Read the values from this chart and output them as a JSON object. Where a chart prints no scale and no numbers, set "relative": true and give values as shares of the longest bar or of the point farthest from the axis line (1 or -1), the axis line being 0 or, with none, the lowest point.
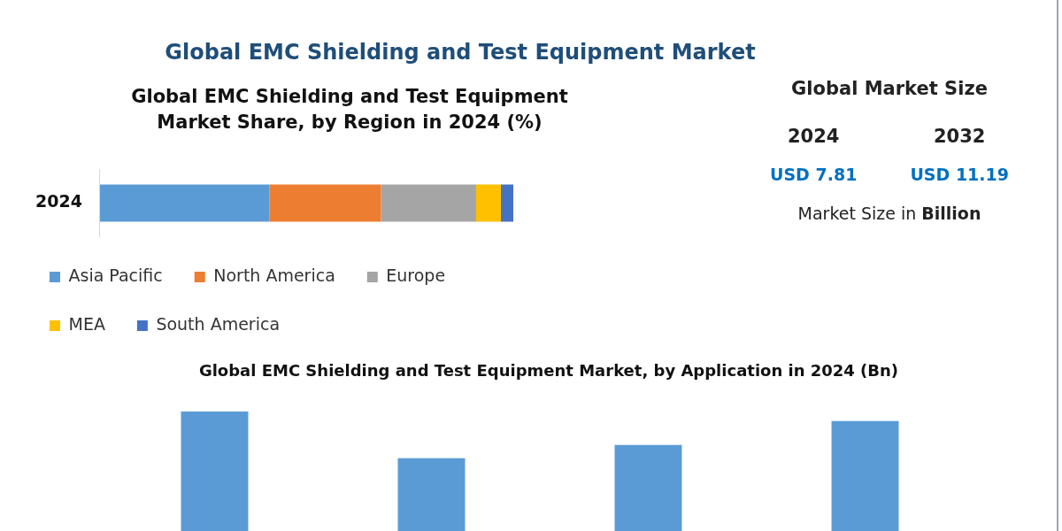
{
  "chart_data": [
    {
      "type": "bar",
      "orientation": "horizontal",
      "stacked": true,
      "relative": true,
      "title": "Global EMC Shielding and Test Equipment Market",
      "subtitle": "Global EMC Shielding and Test Equipment Market Share, by Region in 2024 (%)",
      "categories": [
        "2024"
      ],
      "legend": "bottom",
      "series": [
        {
          "name": "Asia Pacific",
          "color": "#5b9bd5",
          "values": [
            0.41
          ]
        },
        {
          "name": "North America",
          "color": "#ed7d31",
          "values": [
            0.27
          ]
        },
        {
          "name": "Europe",
          "color": "#a5a5a5",
          "values": [
            0.23
          ]
        },
        {
          "name": "MEA",
          "color": "#ffc000",
          "values": [
            0.06
          ]
        },
        {
          "name": "South America",
          "color": "#4472c4",
          "values": [
            0.03
          ]
        }
      ]
    },
    {
      "type": "other",
      "title": "Global Market Size",
      "categories": [
        "2024",
        "2032"
      ],
      "value_labels": [
        "USD 7.81",
        "USD 11.19"
      ],
      "annotations": [
        "Market Size in Billion"
      ]
    },
    {
      "type": "bar",
      "relative": true,
      "title": "Global EMC Shielding and Test Equipment Market, by Application in 2024 (Bn)",
      "categories": [
        null,
        null,
        null,
        null
      ],
      "values": [
        1,
        0.61,
        0.72,
        0.92
      ],
      "color": "#5b9bd5"
    }
  ]
}
